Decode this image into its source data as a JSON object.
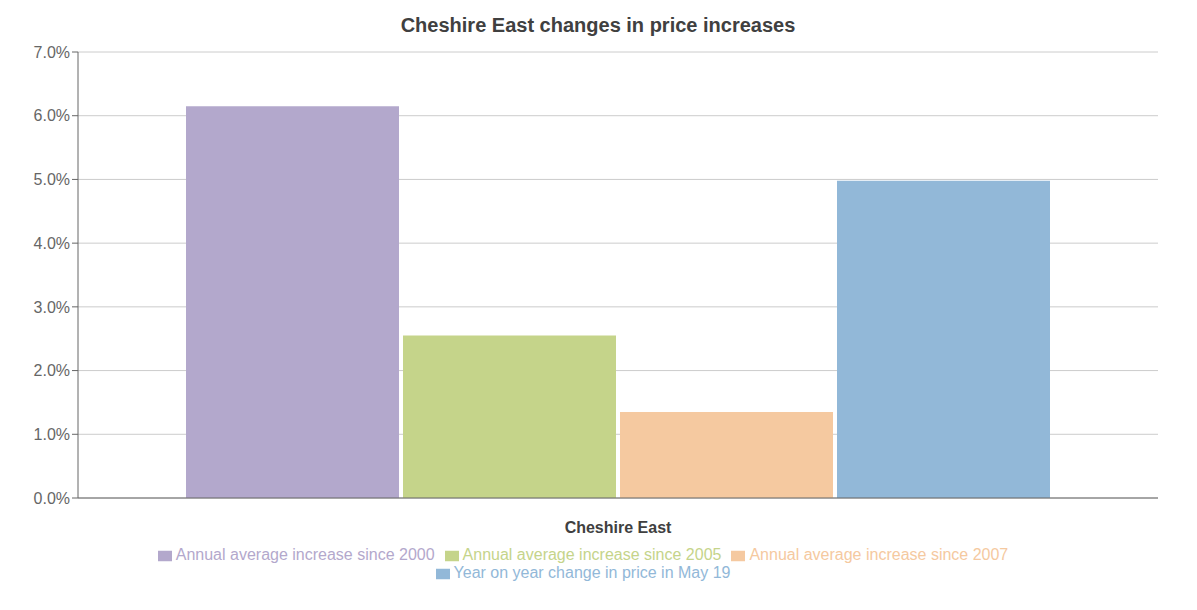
{
  "chart_data": {
    "type": "bar",
    "title": "Cheshire East changes in price increases",
    "xlabel": "Cheshire East",
    "categories": [
      null
    ],
    "series": [
      {
        "name": "Annual average increase since 2000",
        "color": "#b3a8cc",
        "values": [
          0.0615
        ]
      },
      {
        "name": "Annual average increase since 2005",
        "color": "#c5d48a",
        "values": [
          0.0255
        ]
      },
      {
        "name": "Annual average increase since 2007",
        "color": "#f5c9a0",
        "values": [
          0.0135
        ]
      },
      {
        "name": "Year on year change in price in May 19",
        "color": "#92b8d8",
        "values": [
          0.0498
        ]
      }
    ],
    "ylim": [
      0,
      0.07
    ],
    "yticks": [
      {
        "value": 0.0,
        "label": "0.0%"
      },
      {
        "value": 0.01,
        "label": "1.0%"
      },
      {
        "value": 0.02,
        "label": "2.0%"
      },
      {
        "value": 0.03,
        "label": "3.0%"
      },
      {
        "value": 0.04,
        "label": "4.0%"
      },
      {
        "value": 0.05,
        "label": "5.0%"
      },
      {
        "value": 0.06,
        "label": "6.0%"
      },
      {
        "value": 0.07,
        "label": "7.0%"
      }
    ],
    "grid": true,
    "legend": "bottom",
    "tick_labels": "y"
  }
}
